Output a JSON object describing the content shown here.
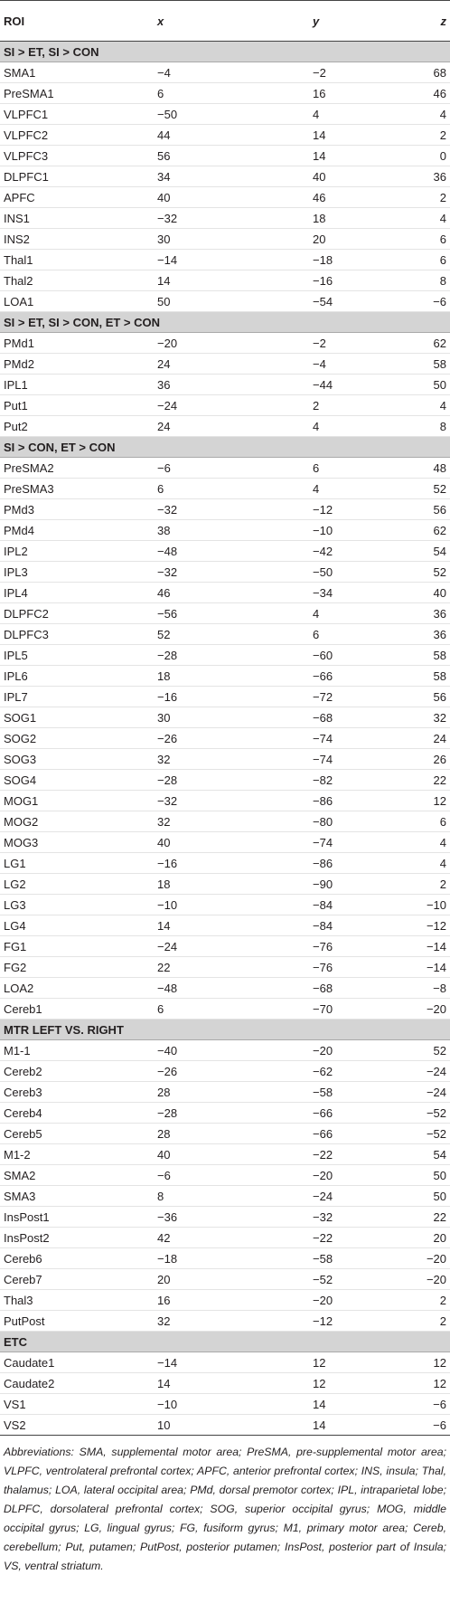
{
  "table": {
    "columns": [
      "ROI",
      "x",
      "y",
      "z"
    ],
    "sections": [
      {
        "title": "SI > ET, SI > CON",
        "rows": [
          [
            "SMA1",
            "−4",
            "−2",
            "68"
          ],
          [
            "PreSMA1",
            "6",
            "16",
            "46"
          ],
          [
            "VLPFC1",
            "−50",
            "4",
            "4"
          ],
          [
            "VLPFC2",
            "44",
            "14",
            "2"
          ],
          [
            "VLPFC3",
            "56",
            "14",
            "0"
          ],
          [
            "DLPFC1",
            "34",
            "40",
            "36"
          ],
          [
            "APFC",
            "40",
            "46",
            "2"
          ],
          [
            "INS1",
            "−32",
            "18",
            "4"
          ],
          [
            "INS2",
            "30",
            "20",
            "6"
          ],
          [
            "Thal1",
            "−14",
            "−18",
            "6"
          ],
          [
            "Thal2",
            "14",
            "−16",
            "8"
          ],
          [
            "LOA1",
            "50",
            "−54",
            "−6"
          ]
        ]
      },
      {
        "title": "SI > ET, SI > CON, ET > CON",
        "rows": [
          [
            "PMd1",
            "−20",
            "−2",
            "62"
          ],
          [
            "PMd2",
            "24",
            "−4",
            "58"
          ],
          [
            "IPL1",
            "36",
            "−44",
            "50"
          ],
          [
            "Put1",
            "−24",
            "2",
            "4"
          ],
          [
            "Put2",
            "24",
            "4",
            "8"
          ]
        ]
      },
      {
        "title": "SI > CON, ET > CON",
        "rows": [
          [
            "PreSMA2",
            "−6",
            "6",
            "48"
          ],
          [
            "PreSMA3",
            "6",
            "4",
            "52"
          ],
          [
            "PMd3",
            "−32",
            "−12",
            "56"
          ],
          [
            "PMd4",
            "38",
            "−10",
            "62"
          ],
          [
            "IPL2",
            "−48",
            "−42",
            "54"
          ],
          [
            "IPL3",
            "−32",
            "−50",
            "52"
          ],
          [
            "IPL4",
            "46",
            "−34",
            "40"
          ],
          [
            "DLPFC2",
            "−56",
            "4",
            "36"
          ],
          [
            "DLPFC3",
            "52",
            "6",
            "36"
          ],
          [
            "IPL5",
            "−28",
            "−60",
            "58"
          ],
          [
            "IPL6",
            "18",
            "−66",
            "58"
          ],
          [
            "IPL7",
            "−16",
            "−72",
            "56"
          ],
          [
            "SOG1",
            "30",
            "−68",
            "32"
          ],
          [
            "SOG2",
            "−26",
            "−74",
            "24"
          ],
          [
            "SOG3",
            "32",
            "−74",
            "26"
          ],
          [
            "SOG4",
            "−28",
            "−82",
            "22"
          ],
          [
            "MOG1",
            "−32",
            "−86",
            "12"
          ],
          [
            "MOG2",
            "32",
            "−80",
            "6"
          ],
          [
            "MOG3",
            "40",
            "−74",
            "4"
          ],
          [
            "LG1",
            "−16",
            "−86",
            "4"
          ],
          [
            "LG2",
            "18",
            "−90",
            "2"
          ],
          [
            "LG3",
            "−10",
            "−84",
            "−10"
          ],
          [
            "LG4",
            "14",
            "−84",
            "−12"
          ],
          [
            "FG1",
            "−24",
            "−76",
            "−14"
          ],
          [
            "FG2",
            "22",
            "−76",
            "−14"
          ],
          [
            "LOA2",
            "−48",
            "−68",
            "−8"
          ],
          [
            "Cereb1",
            "6",
            "−70",
            "−20"
          ]
        ]
      },
      {
        "title": "MTR LEFT VS. RIGHT",
        "rows": [
          [
            "M1-1",
            "−40",
            "−20",
            "52"
          ],
          [
            "Cereb2",
            "−26",
            "−62",
            "−24"
          ],
          [
            "Cereb3",
            "28",
            "−58",
            "−24"
          ],
          [
            "Cereb4",
            "−28",
            "−66",
            "−52"
          ],
          [
            "Cereb5",
            "28",
            "−66",
            "−52"
          ],
          [
            "M1-2",
            "40",
            "−22",
            "54"
          ],
          [
            "SMA2",
            "−6",
            "−20",
            "50"
          ],
          [
            "SMA3",
            "8",
            "−24",
            "50"
          ],
          [
            "InsPost1",
            "−36",
            "−32",
            "22"
          ],
          [
            "InsPost2",
            "42",
            "−22",
            "20"
          ],
          [
            "Cereb6",
            "−18",
            "−58",
            "−20"
          ],
          [
            "Cereb7",
            "20",
            "−52",
            "−20"
          ],
          [
            "Thal3",
            "16",
            "−20",
            "2"
          ],
          [
            "PutPost",
            "32",
            "−12",
            "2"
          ]
        ]
      },
      {
        "title": "ETC",
        "rows": [
          [
            "Caudate1",
            "−14",
            "12",
            "12"
          ],
          [
            "Caudate2",
            "14",
            "12",
            "12"
          ],
          [
            "VS1",
            "−10",
            "14",
            "−6"
          ],
          [
            "VS2",
            "10",
            "14",
            "−6"
          ]
        ]
      }
    ]
  },
  "footnote": "Abbreviations: SMA, supplemental motor area; PreSMA, pre-supplemental motor area; VLPFC, ventrolateral prefrontal cortex; APFC, anterior prefrontal cortex; INS, insula; Thal, thalamus; LOA, lateral occipital area; PMd, dorsal premotor cortex; IPL, intraparietal lobe; DLPFC, dorsolateral prefrontal cortex; SOG, superior occipital gyrus; MOG, middle occipital gyrus; LG, lingual gyrus; FG, fusiform gyrus; M1, primary motor area; Cereb, cerebellum; Put, putamen; PutPost, posterior putamen; InsPost, posterior part of Insula; VS, ventral striatum."
}
